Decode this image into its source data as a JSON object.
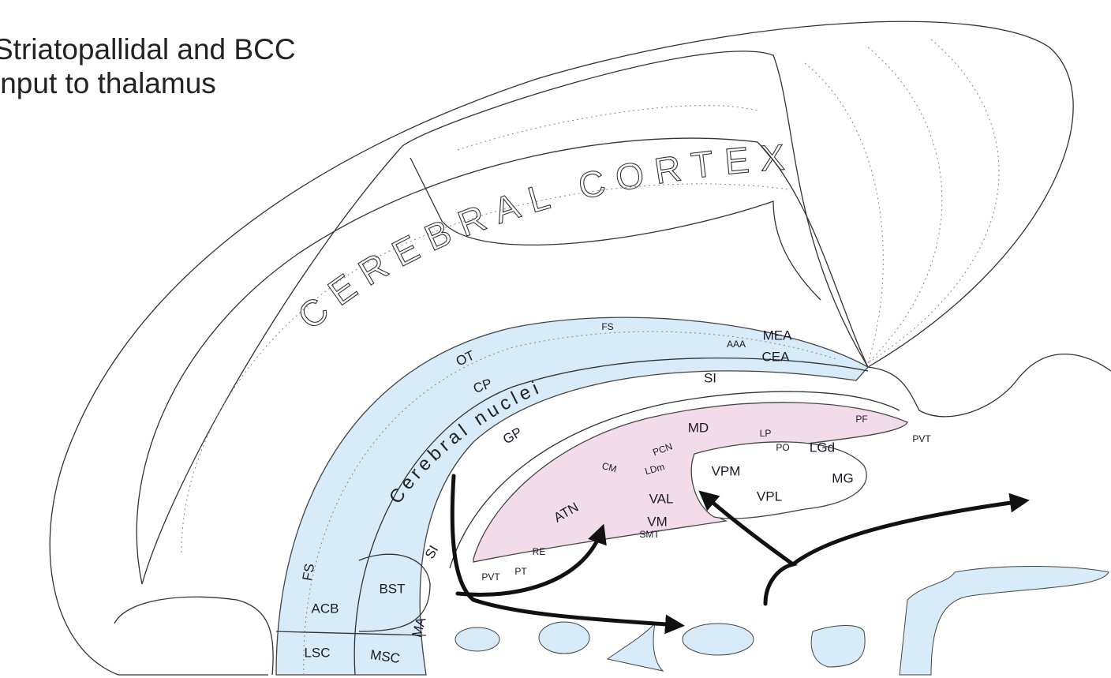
{
  "title": [
    "Striatopallidal and BCC",
    "input to thalamus"
  ],
  "regions": {
    "cortex": "CEREBRAL CORTEX",
    "nuclei": "Cerebral nuclei"
  },
  "labels": [
    "FS",
    "AAA",
    "MEA",
    "CEA",
    "OT",
    "CP",
    "SI",
    "GP",
    "SI",
    "FS",
    "ACB",
    "BST",
    "LSC",
    "MSC",
    "MA",
    "PF",
    "MD",
    "PCN",
    "LP",
    "PO",
    "LGd",
    "PVT",
    "CM",
    "LDm",
    "VPM",
    "MG",
    "VAL",
    "VPL",
    "ATN",
    "VM",
    "SMT",
    "RE",
    "PVT",
    "PT"
  ]
}
